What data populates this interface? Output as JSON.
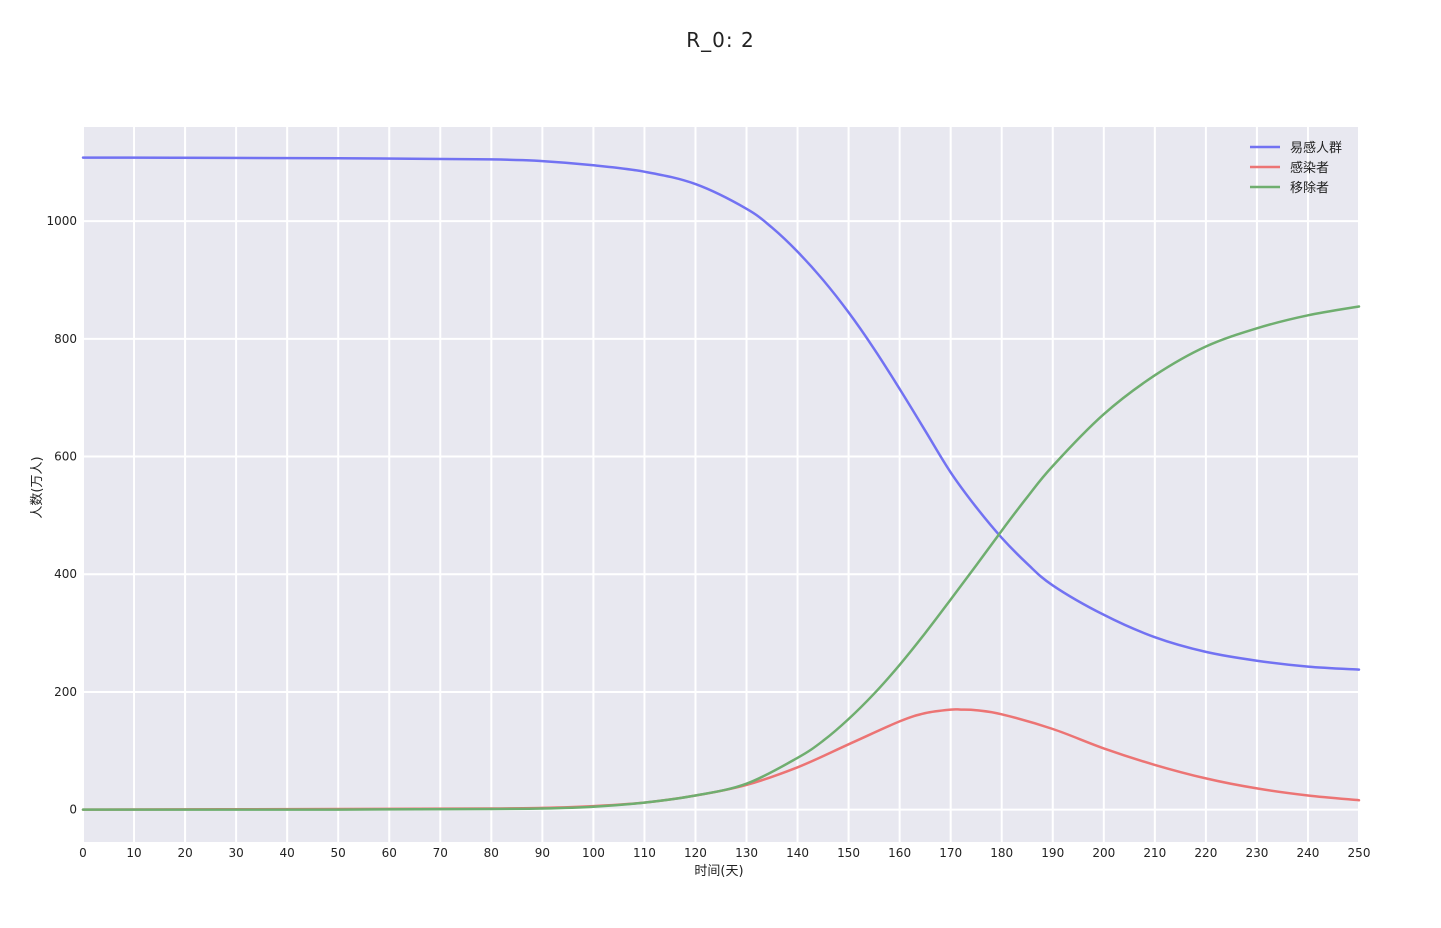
{
  "chart_data": {
    "type": "line",
    "title": "R_0: 2",
    "xlabel": "时间(天)",
    "ylabel": "人数(万人)",
    "xlim": [
      0,
      250
    ],
    "ylim": [
      -55,
      1160
    ],
    "xticks": [
      0,
      10,
      20,
      30,
      40,
      50,
      60,
      70,
      80,
      90,
      100,
      110,
      120,
      130,
      140,
      150,
      160,
      170,
      180,
      190,
      200,
      210,
      220,
      230,
      240,
      250
    ],
    "yticks": [
      0,
      200,
      400,
      600,
      800,
      1000
    ],
    "grid": true,
    "legend_position": "top-right",
    "background": "#e8e8f0",
    "series": [
      {
        "name": "易感人群",
        "color": "#7272f2",
        "x": [
          0,
          50,
          80,
          90,
          100,
          110,
          120,
          130,
          135,
          140,
          145,
          150,
          155,
          160,
          165,
          170,
          175,
          180,
          185,
          190,
          200,
          210,
          220,
          230,
          240,
          250
        ],
        "y": [
          1108,
          1107,
          1105,
          1102,
          1095,
          1084,
          1063,
          1021,
          989,
          948,
          900,
          845,
          783,
          715,
          644,
          573,
          514,
          462,
          418,
          381,
          331,
          293,
          268,
          253,
          243,
          238
        ]
      },
      {
        "name": "感染者",
        "color": "#ec7474",
        "x": [
          0,
          50,
          80,
          90,
          100,
          110,
          120,
          130,
          140,
          150,
          160,
          165,
          170,
          172,
          175,
          180,
          190,
          200,
          210,
          220,
          230,
          240,
          250
        ],
        "y": [
          0,
          1,
          2,
          3,
          6,
          12,
          24,
          42,
          72,
          111,
          150,
          164,
          170,
          170,
          169,
          162,
          137,
          104,
          76,
          53,
          36,
          24,
          16
        ]
      },
      {
        "name": "移除者",
        "color": "#6fae6f",
        "x": [
          0,
          50,
          80,
          90,
          100,
          110,
          120,
          130,
          140,
          145,
          150,
          155,
          160,
          165,
          170,
          175,
          180,
          185,
          190,
          200,
          210,
          220,
          230,
          240,
          250
        ],
        "y": [
          0,
          0,
          1,
          2,
          5,
          12,
          24,
          44,
          88,
          117,
          154,
          197,
          246,
          300,
          357,
          415,
          474,
          531,
          584,
          672,
          738,
          787,
          818,
          840,
          855
        ]
      }
    ]
  }
}
